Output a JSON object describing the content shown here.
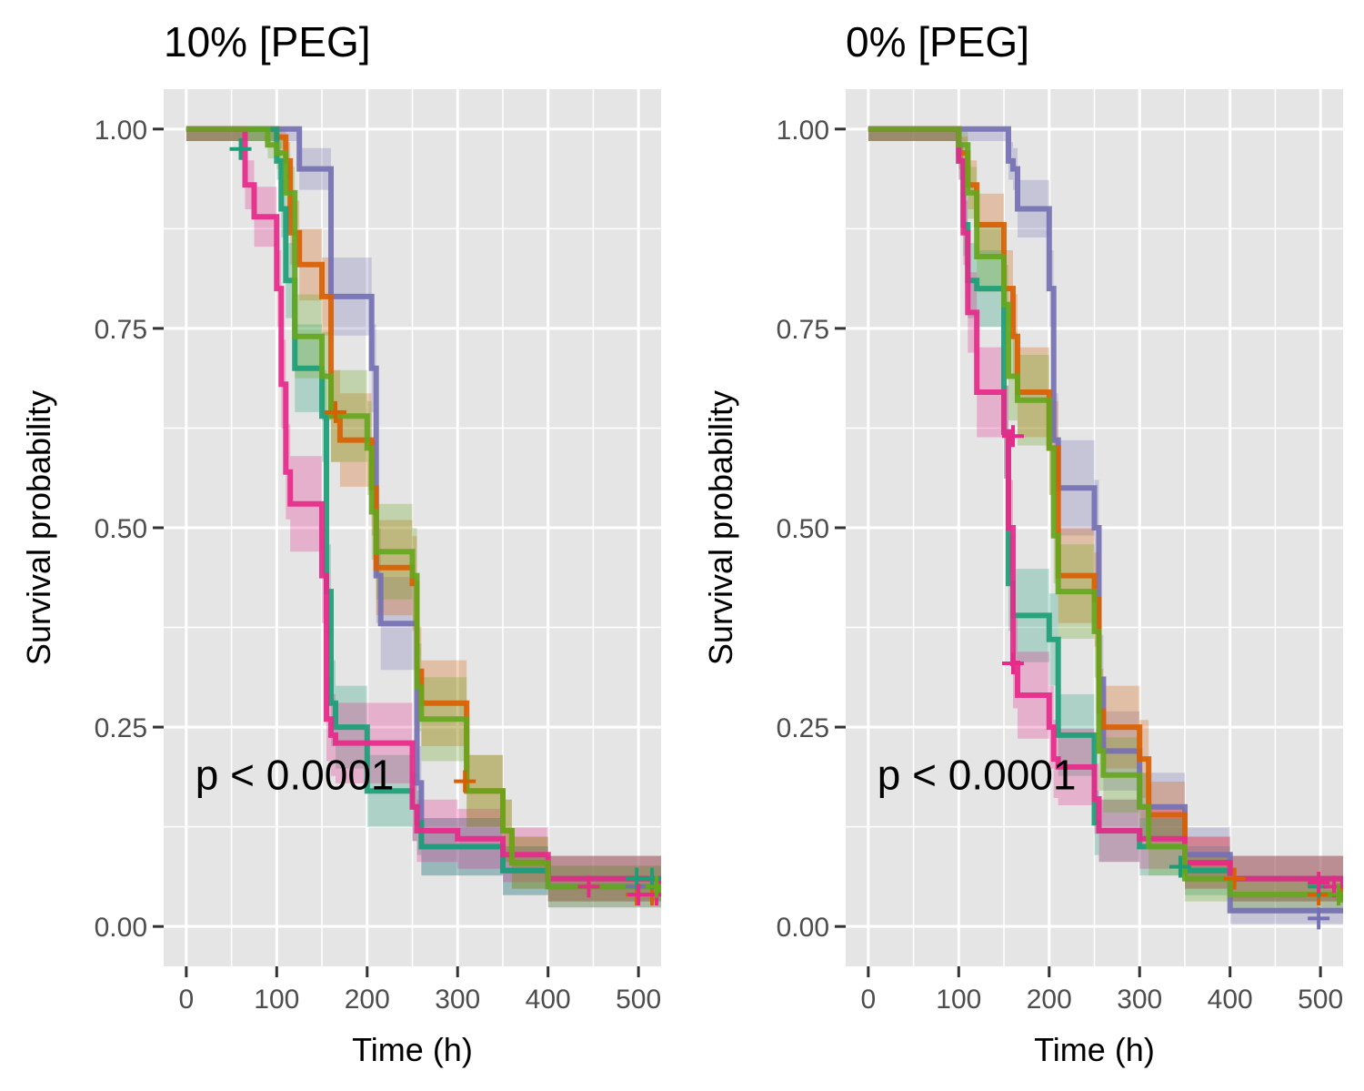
{
  "colors": {
    "panel_bg": "#e5e5e5",
    "grid": "#ffffff",
    "series": [
      "#7570b3",
      "#d95f02",
      "#1b9e77",
      "#e7298a",
      "#66a61e"
    ]
  },
  "chart_data": [
    {
      "type": "line",
      "step": true,
      "title": "10% [PEG]",
      "xlabel": "Time (h)",
      "ylabel": "Survival probability",
      "xlim": [
        -25,
        525
      ],
      "ylim": [
        -0.05,
        1.05
      ],
      "xticks": [
        0,
        100,
        200,
        300,
        400,
        500
      ],
      "xtick_labels": [
        "0",
        "100",
        "200",
        "300",
        "400",
        "500"
      ],
      "yticks": [
        0,
        0.25,
        0.5,
        0.75,
        1
      ],
      "ytick_labels": [
        "0.00",
        "0.25",
        "0.50",
        "0.75",
        "1.00"
      ],
      "grid": true,
      "confidence_bands": true,
      "annotation": {
        "text": "p < 0.0001",
        "x": 10,
        "y": 0.19
      },
      "series": [
        {
          "color": "#7570b3",
          "x": [
            0,
            115,
            125,
            150,
            160,
            195,
            205,
            210,
            215,
            250,
            255,
            260,
            300,
            350,
            400,
            525
          ],
          "y": [
            1,
            1,
            0.95,
            0.95,
            0.79,
            0.79,
            0.7,
            0.44,
            0.38,
            0.38,
            0.18,
            0.1,
            0.1,
            0.07,
            0.05,
            0.05
          ],
          "censored": [
            [
              498,
              0.05
            ]
          ]
        },
        {
          "color": "#d95f02",
          "x": [
            0,
            60,
            100,
            110,
            115,
            125,
            150,
            160,
            170,
            200,
            205,
            210,
            250,
            255,
            260,
            300,
            310,
            350,
            360,
            400,
            525
          ],
          "y": [
            1,
            1,
            0.99,
            0.96,
            0.87,
            0.83,
            0.79,
            0.64,
            0.61,
            0.61,
            0.55,
            0.45,
            0.43,
            0.32,
            0.28,
            0.28,
            0.17,
            0.12,
            0.08,
            0.06,
            0.05
          ],
          "censored": [
            [
              165,
              0.645
            ],
            [
              308,
              0.182
            ],
            [
              498,
              0.04
            ],
            [
              515,
              0.04
            ]
          ]
        },
        {
          "color": "#1b9e77",
          "x": [
            0,
            60,
            100,
            105,
            110,
            120,
            150,
            155,
            160,
            165,
            200,
            250,
            255,
            260,
            300,
            350,
            400,
            525
          ],
          "y": [
            1,
            1,
            0.96,
            0.9,
            0.81,
            0.7,
            0.64,
            0.42,
            0.28,
            0.25,
            0.17,
            0.15,
            0.13,
            0.1,
            0.1,
            0.07,
            0.06,
            0.06
          ],
          "censored": [
            [
              60,
              0.975
            ],
            [
              498,
              0.06
            ],
            [
              515,
              0.06
            ]
          ]
        },
        {
          "color": "#e7298a",
          "x": [
            0,
            60,
            65,
            75,
            100,
            105,
            110,
            115,
            150,
            155,
            160,
            165,
            200,
            250,
            255,
            300,
            350,
            400,
            525
          ],
          "y": [
            1,
            1,
            0.93,
            0.89,
            0.8,
            0.68,
            0.57,
            0.53,
            0.44,
            0.26,
            0.24,
            0.23,
            0.23,
            0.15,
            0.12,
            0.11,
            0.09,
            0.06,
            0.05
          ],
          "censored": [
            [
              445,
              0.05
            ],
            [
              500,
              0.04
            ],
            [
              520,
              0.04
            ]
          ]
        },
        {
          "color": "#66a61e",
          "x": [
            0,
            60,
            90,
            100,
            110,
            120,
            150,
            160,
            170,
            200,
            205,
            210,
            215,
            250,
            255,
            260,
            300,
            310,
            350,
            360,
            400,
            525
          ],
          "y": [
            1,
            1,
            0.98,
            0.97,
            0.92,
            0.74,
            0.69,
            0.64,
            0.64,
            0.6,
            0.52,
            0.47,
            0.47,
            0.44,
            0.3,
            0.26,
            0.26,
            0.17,
            0.12,
            0.08,
            0.05,
            0.04
          ],
          "censored": [
            [
              520,
              0.05
            ]
          ]
        }
      ]
    },
    {
      "type": "line",
      "step": true,
      "title": "0% [PEG]",
      "xlabel": "Time (h)",
      "ylabel": "Survival probability",
      "xlim": [
        -25,
        525
      ],
      "ylim": [
        -0.05,
        1.05
      ],
      "xticks": [
        0,
        100,
        200,
        300,
        400,
        500
      ],
      "xtick_labels": [
        "0",
        "100",
        "200",
        "300",
        "400",
        "500"
      ],
      "yticks": [
        0,
        0.25,
        0.5,
        0.75,
        1
      ],
      "ytick_labels": [
        "0.00",
        "0.25",
        "0.50",
        "0.75",
        "1.00"
      ],
      "grid": true,
      "confidence_bands": true,
      "annotation": {
        "text": "p < 0.0001",
        "x": 10,
        "y": 0.19
      },
      "series": [
        {
          "color": "#7570b3",
          "x": [
            0,
            150,
            155,
            160,
            165,
            170,
            200,
            205,
            210,
            250,
            255,
            260,
            300,
            350,
            400,
            525
          ],
          "y": [
            1,
            1,
            0.96,
            0.95,
            0.9,
            0.9,
            0.8,
            0.61,
            0.55,
            0.5,
            0.31,
            0.22,
            0.15,
            0.09,
            0.02,
            0.02
          ],
          "censored": [
            [
              498,
              0.01
            ]
          ]
        },
        {
          "color": "#d95f02",
          "x": [
            0,
            60,
            100,
            110,
            120,
            150,
            160,
            165,
            200,
            210,
            250,
            255,
            260,
            300,
            310,
            350,
            400,
            525
          ],
          "y": [
            1,
            1,
            0.97,
            0.93,
            0.88,
            0.8,
            0.74,
            0.67,
            0.6,
            0.44,
            0.41,
            0.27,
            0.25,
            0.21,
            0.14,
            0.08,
            0.06,
            0.04
          ],
          "censored": [
            [
              405,
              0.06
            ],
            [
              498,
              0.04
            ]
          ]
        },
        {
          "color": "#1b9e77",
          "x": [
            0,
            60,
            100,
            105,
            110,
            120,
            150,
            155,
            160,
            165,
            200,
            210,
            250,
            255,
            300,
            350,
            400,
            525
          ],
          "y": [
            1,
            1,
            0.96,
            0.88,
            0.81,
            0.8,
            0.62,
            0.43,
            0.39,
            0.39,
            0.36,
            0.24,
            0.13,
            0.12,
            0.1,
            0.07,
            0.06,
            0.05
          ],
          "censored": [
            [
              345,
              0.075
            ],
            [
              498,
              0.05
            ]
          ]
        },
        {
          "color": "#e7298a",
          "x": [
            0,
            60,
            100,
            105,
            110,
            120,
            150,
            155,
            160,
            165,
            200,
            205,
            210,
            250,
            255,
            300,
            350,
            400,
            525
          ],
          "y": [
            1,
            1,
            0.96,
            0.87,
            0.77,
            0.67,
            0.62,
            0.5,
            0.33,
            0.29,
            0.25,
            0.21,
            0.2,
            0.16,
            0.12,
            0.11,
            0.08,
            0.06,
            0.05
          ],
          "censored": [
            [
              160,
              0.615
            ],
            [
              160,
              0.33
            ],
            [
              498,
              0.055
            ],
            [
              515,
              0.05
            ]
          ]
        },
        {
          "color": "#66a61e",
          "x": [
            0,
            60,
            100,
            110,
            120,
            150,
            155,
            165,
            200,
            205,
            210,
            250,
            255,
            260,
            300,
            310,
            350,
            400,
            525
          ],
          "y": [
            1,
            1,
            0.98,
            0.92,
            0.84,
            0.78,
            0.69,
            0.66,
            0.6,
            0.49,
            0.42,
            0.37,
            0.22,
            0.19,
            0.15,
            0.1,
            0.06,
            0.04,
            0.03
          ],
          "censored": [
            [
              520,
              0.04
            ]
          ]
        }
      ]
    }
  ]
}
